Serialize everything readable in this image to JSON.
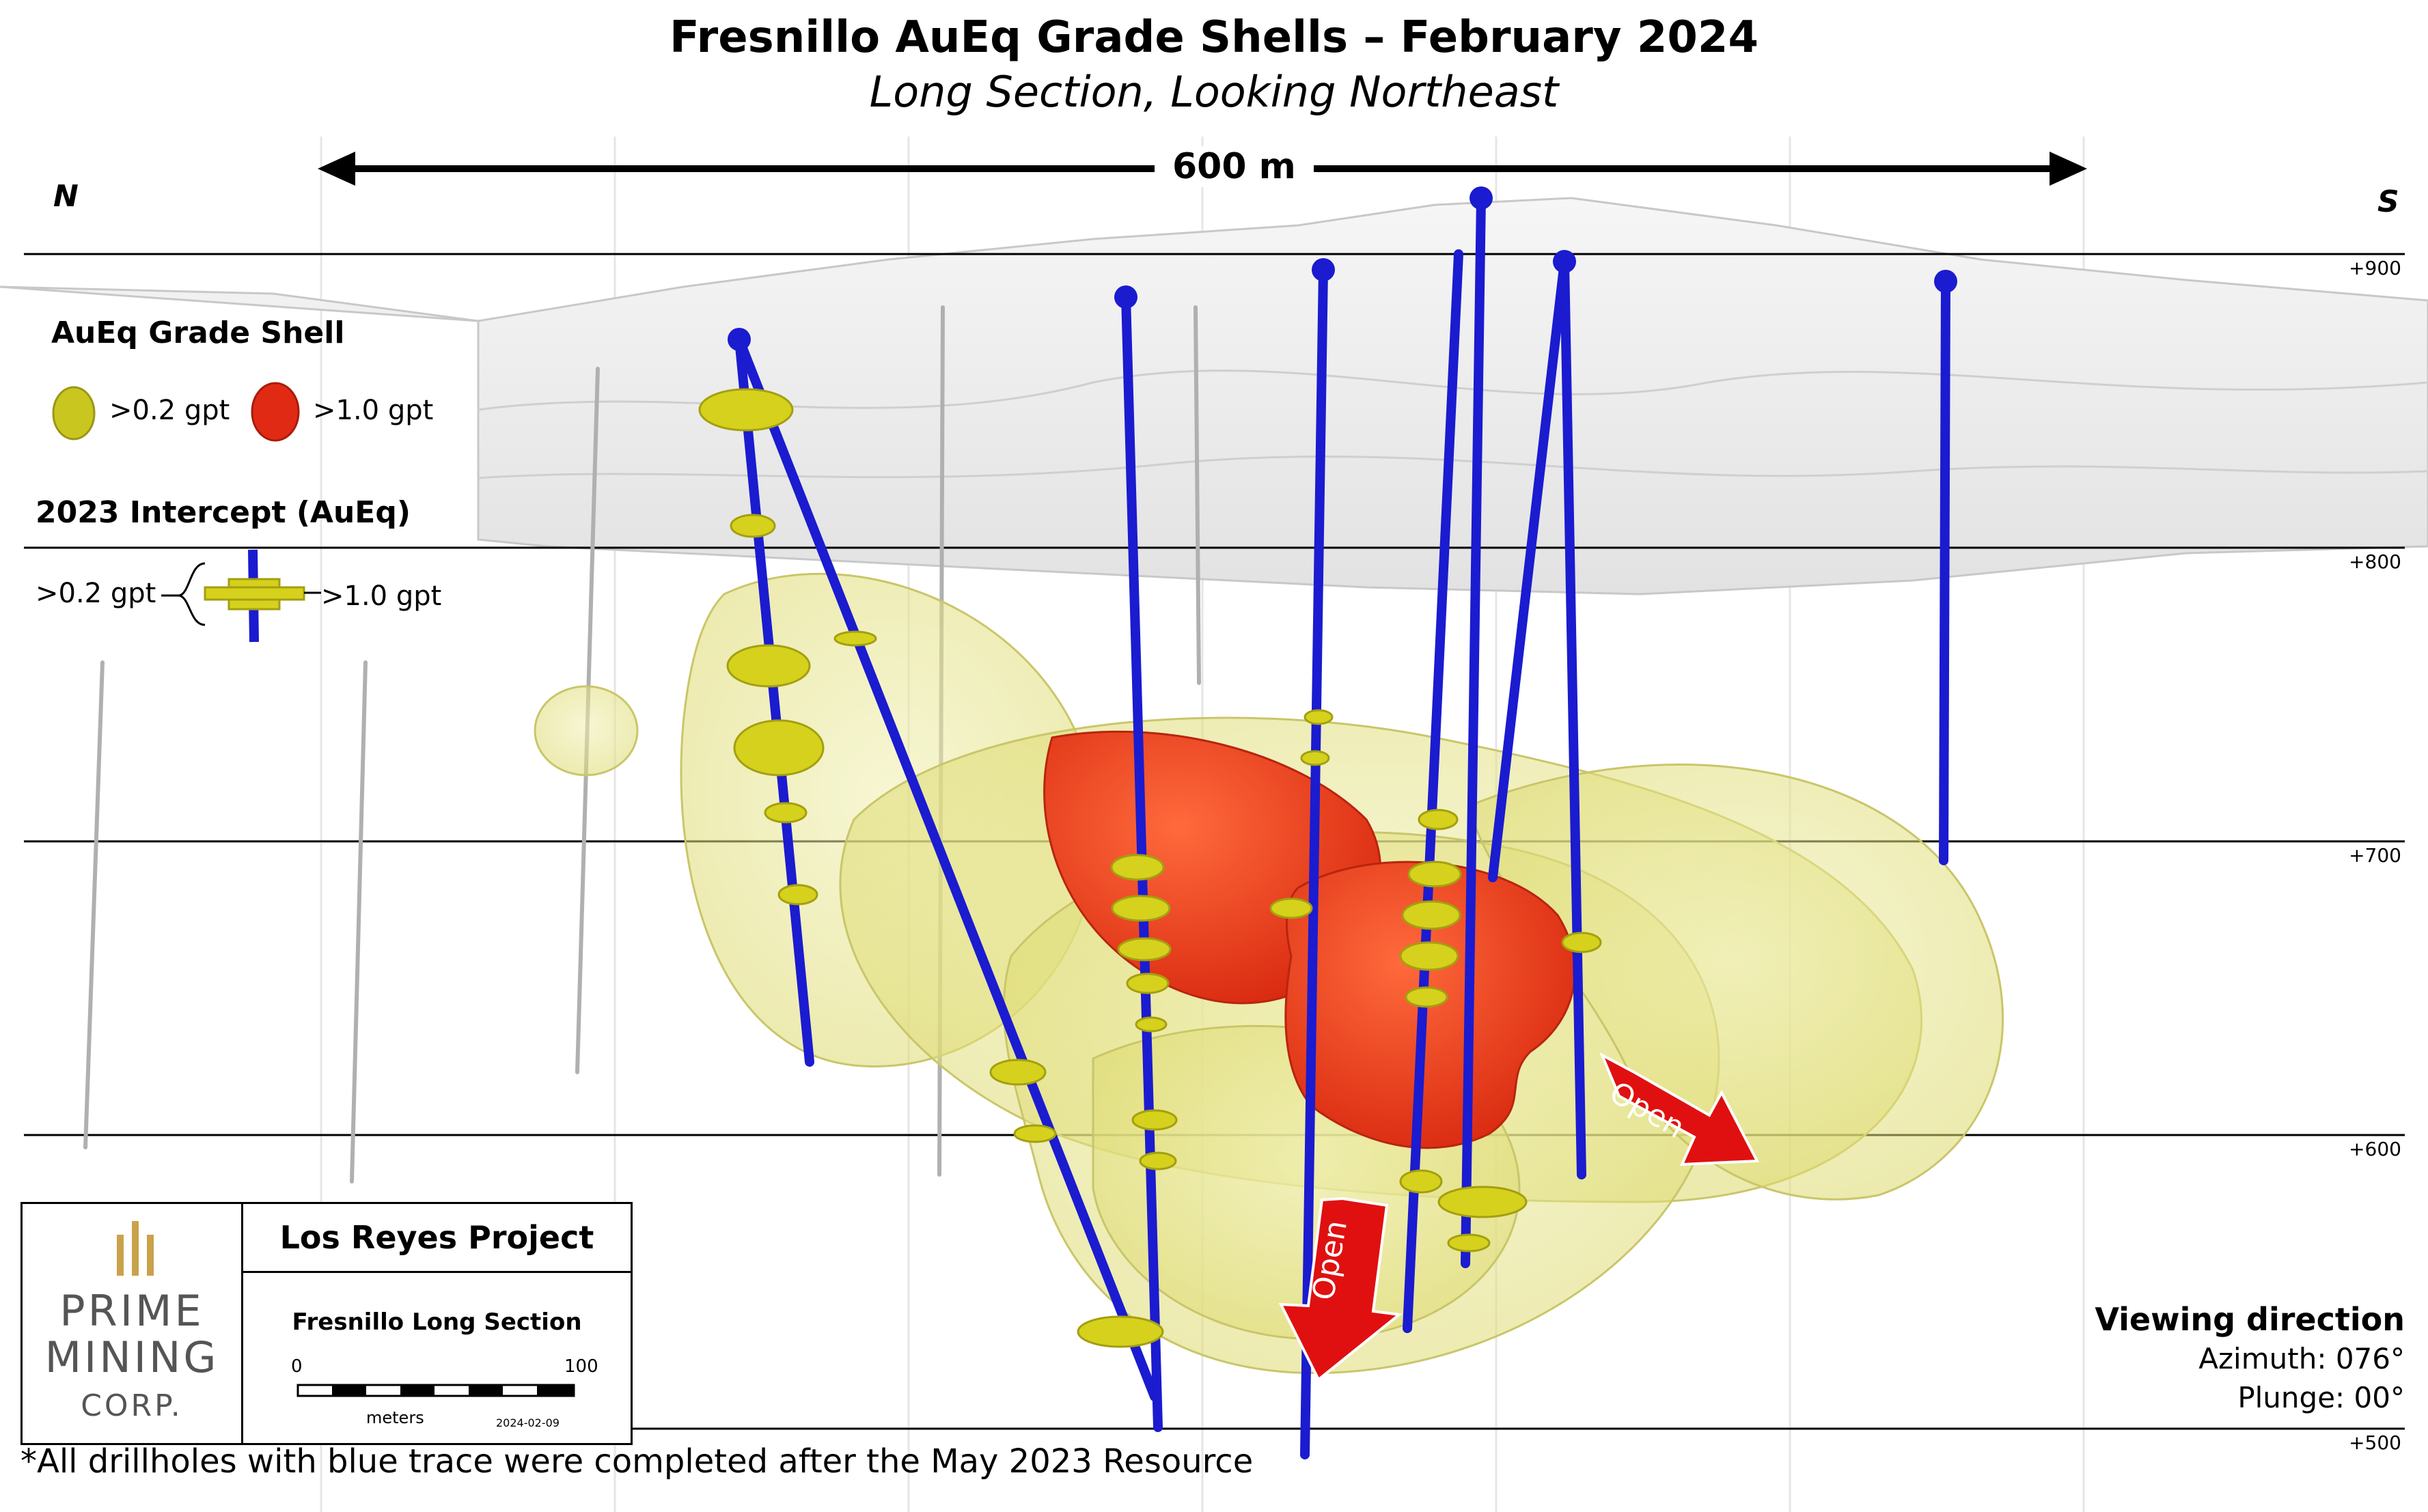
{
  "title": "Fresnillo AuEq Grade Shells – February 2024",
  "subtitle": "Long Section, Looking Northeast",
  "compass": {
    "left": "N",
    "right": "S"
  },
  "scale_bar_label": "600 m",
  "elevation_labels": [
    "+900",
    "+800",
    "+700",
    "+600",
    "+500"
  ],
  "legend": {
    "shell_heading": "AuEq Grade Shell",
    "shell_low": ">0.2 gpt",
    "shell_high": ">1.0 gpt",
    "intercept_heading": "2023 Intercept (AuEq)",
    "intercept_low": ">0.2 gpt",
    "intercept_high": ">1.0 gpt"
  },
  "arrows": {
    "open_1": "Open",
    "open_2": "Open"
  },
  "infobox": {
    "logo_line1": "PRIME",
    "logo_line2": "MINING",
    "logo_line3": "CORP.",
    "project": "Los Reyes Project",
    "section": "Fresnillo Long Section",
    "scale_min": "0",
    "scale_max": "100",
    "scale_unit": "meters",
    "date": "2024-02-09"
  },
  "viewing": {
    "heading": "Viewing direction",
    "azimuth": "Azimuth: 076°",
    "plunge": "Plunge: 00°"
  },
  "footnote": "*All drillholes with blue trace were completed after the May 2023 Resource",
  "colors": {
    "drillhole": "#1b1bd0",
    "shell_low": "#e4e27a",
    "shell_high": "#e8391c",
    "intercept": "#d6d11c",
    "arrow": "#e01010",
    "topo": "#d9d9d9"
  }
}
